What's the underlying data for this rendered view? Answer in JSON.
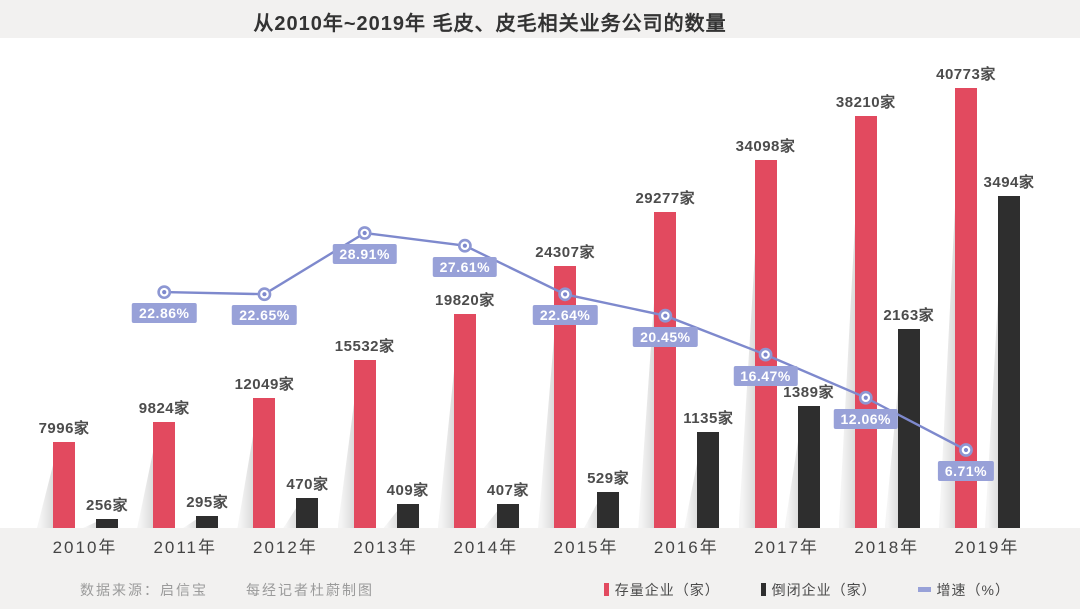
{
  "title": "从2010年~2019年  毛皮、皮毛相关业务公司的数量",
  "footer": {
    "source": "数据来源：启信宝",
    "credit": "每经记者杜蔚制图"
  },
  "legend": {
    "existing": {
      "label": "存量企业（家）",
      "color": "#e24a5f"
    },
    "closed": {
      "label": "倒闭企业（家）",
      "color": "#2e2e2e"
    },
    "growth": {
      "label": "增速（%）",
      "color": "#98a1d8"
    }
  },
  "colors": {
    "existing_bar": "#e24a5f",
    "closed_bar": "#2e2e2e",
    "growth_line": "#7e89cd",
    "growth_label_bg": "#98a1d8",
    "background": "#f2f1f0",
    "plot_background": "#ffffff"
  },
  "chart_data": {
    "type": "bar",
    "subtype": "dual-axis bars with growth-rate line",
    "title": "从2010年~2019年  毛皮、皮毛相关业务公司的数量",
    "categories": [
      "2010年",
      "2011年",
      "2012年",
      "2013年",
      "2014年",
      "2015年",
      "2016年",
      "2017年",
      "2018年",
      "2019年"
    ],
    "series": [
      {
        "name": "存量企业（家）",
        "type": "bar",
        "color": "#e24a5f",
        "values": [
          7996,
          9824,
          12049,
          15532,
          19820,
          24307,
          29277,
          34098,
          38210,
          40773
        ],
        "labels": [
          "7996家",
          "9824家",
          "12049家",
          "15532家",
          "19820家",
          "24307家",
          "29277家",
          "34098家",
          "38210家",
          "40773家"
        ]
      },
      {
        "name": "倒闭企业（家）",
        "type": "bar",
        "color": "#2e2e2e",
        "values": [
          256,
          295,
          470,
          409,
          407,
          529,
          1135,
          1389,
          2163,
          3494
        ],
        "labels": [
          "256家",
          "295家",
          "470家",
          "409家",
          "407家",
          "529家",
          "1135家",
          "1389家",
          "2163家",
          "3494家"
        ]
      },
      {
        "name": "增速（%）",
        "type": "line",
        "color": "#7e89cd",
        "values": [
          null,
          22.86,
          22.65,
          28.91,
          27.61,
          22.64,
          20.45,
          16.47,
          12.06,
          6.71
        ],
        "labels": [
          null,
          "22.86%",
          "22.65%",
          "28.91%",
          "27.61%",
          "22.64%",
          "20.45%",
          "16.47%",
          "12.06%",
          "6.71%"
        ]
      }
    ],
    "legend_position": "bottom-right",
    "grid": false,
    "axes_visible": false
  }
}
